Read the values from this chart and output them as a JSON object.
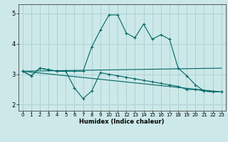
{
  "title": "",
  "xlabel": "Humidex (Indice chaleur)",
  "background_color": "#cce8e8",
  "line_color": "#006666",
  "grid_color": "#aacfcf",
  "xlim": [
    -0.5,
    23.5
  ],
  "ylim": [
    1.8,
    5.3
  ],
  "xticks": [
    0,
    1,
    2,
    3,
    4,
    5,
    6,
    7,
    8,
    9,
    10,
    11,
    12,
    13,
    14,
    15,
    16,
    17,
    18,
    19,
    20,
    21,
    22,
    23
  ],
  "yticks": [
    2,
    3,
    4,
    5
  ],
  "line1_x": [
    0,
    1,
    2,
    3,
    4,
    5,
    6,
    7,
    8,
    9,
    10,
    11,
    12,
    13,
    14,
    15,
    16,
    17,
    18,
    19,
    20,
    21,
    22,
    23
  ],
  "line1_y": [
    3.1,
    2.95,
    3.2,
    3.15,
    3.1,
    3.1,
    2.55,
    2.2,
    2.45,
    3.05,
    3.0,
    2.95,
    2.9,
    2.85,
    2.8,
    2.75,
    2.7,
    2.65,
    2.6,
    2.5,
    2.5,
    2.45,
    2.42,
    2.42
  ],
  "line2_x": [
    0,
    1,
    2,
    3,
    4,
    5,
    6,
    7,
    8,
    9,
    10,
    11,
    12,
    13,
    14,
    15,
    16,
    17,
    18,
    19,
    20,
    21,
    22,
    23
  ],
  "line2_y": [
    3.1,
    2.95,
    3.2,
    3.15,
    3.1,
    3.1,
    3.1,
    3.1,
    3.9,
    4.45,
    4.95,
    4.95,
    4.35,
    4.2,
    4.65,
    4.15,
    4.3,
    4.15,
    3.2,
    2.95,
    2.65,
    2.45,
    2.42,
    2.42
  ],
  "line3_x": [
    0,
    23
  ],
  "line3_y": [
    3.1,
    3.2
  ],
  "line4_x": [
    0,
    23
  ],
  "line4_y": [
    3.1,
    2.42
  ],
  "xlabel_fontsize": 6,
  "tick_fontsize": 5,
  "ytick_fontsize": 6
}
